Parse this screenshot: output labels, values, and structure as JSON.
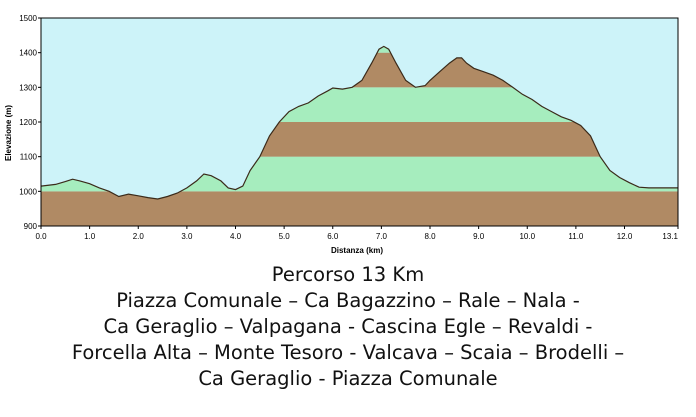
{
  "chart_data": {
    "type": "area",
    "xlabel": "Distanza (km)",
    "ylabel": "Elevazione (m)",
    "xlim": [
      0,
      13.1
    ],
    "ylim": [
      900,
      1500
    ],
    "x_ticks": [
      "0.0",
      "1.0",
      "2.0",
      "3.0",
      "4.0",
      "5.0",
      "6.0",
      "7.0",
      "8.0",
      "9.0",
      "10.0",
      "11.0",
      "12.0",
      "13.1"
    ],
    "y_ticks": [
      "900",
      "1000",
      "1100",
      "1200",
      "1300",
      "1400",
      "1500"
    ],
    "band_colors": [
      "#b08a64",
      "#a6edbe"
    ],
    "sky_color": "#cdf3f9",
    "line_color": "#3a2a1a",
    "series": [
      {
        "x": [
          0.0,
          0.3,
          0.5,
          0.65,
          0.8,
          1.0,
          1.2,
          1.4,
          1.6,
          1.8,
          2.0,
          2.2,
          2.4,
          2.6,
          2.8,
          3.0,
          3.2,
          3.35,
          3.5,
          3.7,
          3.85,
          4.0,
          4.15,
          4.3,
          4.5,
          4.7,
          4.9,
          5.1,
          5.3,
          5.5,
          5.7,
          5.9,
          6.0,
          6.2,
          6.4,
          6.6,
          6.8,
          6.95,
          7.05,
          7.15,
          7.3,
          7.5,
          7.7,
          7.9,
          8.0,
          8.2,
          8.4,
          8.55,
          8.65,
          8.75,
          8.9,
          9.1,
          9.3,
          9.5,
          9.7,
          9.9,
          10.1,
          10.3,
          10.5,
          10.7,
          10.9,
          11.1,
          11.3,
          11.5,
          11.7,
          11.9,
          12.1,
          12.3,
          12.5,
          12.7,
          13.1
        ],
        "y": [
          1015,
          1020,
          1028,
          1035,
          1030,
          1022,
          1010,
          1000,
          985,
          992,
          987,
          982,
          978,
          985,
          995,
          1010,
          1030,
          1050,
          1045,
          1030,
          1010,
          1005,
          1015,
          1060,
          1100,
          1160,
          1200,
          1230,
          1245,
          1255,
          1275,
          1290,
          1298,
          1295,
          1300,
          1320,
          1370,
          1410,
          1418,
          1410,
          1370,
          1320,
          1300,
          1305,
          1320,
          1345,
          1370,
          1385,
          1385,
          1370,
          1355,
          1345,
          1335,
          1320,
          1300,
          1280,
          1265,
          1245,
          1230,
          1215,
          1205,
          1190,
          1160,
          1100,
          1060,
          1040,
          1025,
          1012,
          1010,
          1010,
          1010
        ]
      }
    ]
  },
  "caption": {
    "lines": [
      "Percorso 13 Km",
      "Piazza Comunale – Ca Bagazzino – Rale – Nala -",
      "Ca Geraglio – Valpagana - Cascina Egle – Revaldi -",
      "Forcella Alta – Monte Tesoro - Valcava – Scaia – Brodelli –",
      "Ca Geraglio - Piazza Comunale"
    ]
  }
}
